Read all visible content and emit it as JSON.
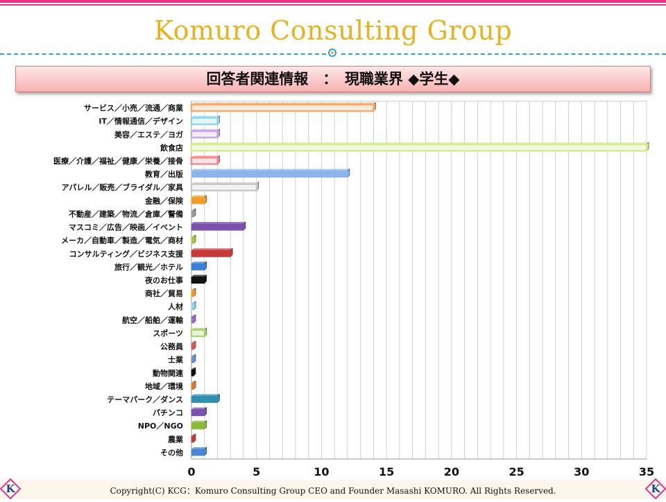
{
  "header": {
    "title": "Komuro Consulting Group"
  },
  "banner": {
    "text": "回答者関連情報　：　現職業界 ◆学生◆"
  },
  "footer": {
    "copyright": "Copyright(C)  KCG：Komuro Consulting Group   CEO and Founder  Masashi KOMURO. All Rights Reserved.",
    "logo_letter": "K"
  },
  "colors": {
    "accent_pink": "#e8318a",
    "title_gold": "#e7b21c",
    "dash_blue": "#2aa3d8"
  },
  "chart_data": {
    "type": "bar",
    "orientation": "horizontal",
    "title": "回答者関連情報　：　現職業界 ◆学生◆",
    "xlim": [
      0,
      35
    ],
    "xticks": [
      0,
      5,
      10,
      15,
      20,
      25,
      30,
      35
    ],
    "grid": true,
    "categories": [
      "サービス／小売／流通／商業",
      "IT／情報通信／デザイン",
      "美容／エステ／ヨガ",
      "飲食店",
      "医療／介護／福祉／健康／栄養／接骨",
      "教育／出版",
      "アパレル／販売／ブライダル／家具",
      "金融／保険",
      "不動産／建築／物流／倉庫／警備",
      "マスコミ／広告／映画／イベント",
      "メーカ／自動車／製造／電気／商材",
      "コンサルティング／ビジネス支援",
      "旅行／観光／ホテル",
      "夜のお仕事",
      "商社／貿易",
      "人材",
      "航空／船舶／運輸",
      "スポーツ",
      "公務員",
      "士業",
      "動物関連",
      "地域／環境",
      "テーマパーク／ダンス",
      "パチンコ",
      "NPO／NGO",
      "農業",
      "その他"
    ],
    "values": [
      14,
      2,
      2,
      35,
      2,
      12,
      5,
      1,
      0,
      4,
      0,
      3,
      1,
      1,
      0,
      0,
      0,
      1,
      0,
      0,
      0,
      0,
      2,
      1,
      1,
      0,
      1
    ],
    "bar_colors": [
      "#f5a86a",
      "#8fd6ec",
      "#c5a6e0",
      "#d4ec8a",
      "#f4888a",
      "#8ab4ea",
      "#c8c8c8",
      "#f39c2e",
      "#9a9a9a",
      "#7a52ad",
      "#a8c842",
      "#c83a3a",
      "#3d7fd6",
      "#111111",
      "#f39c2e",
      "#8fd6ec",
      "#9d6bc4",
      "#a8d46a",
      "#d85a5a",
      "#6a8fd6",
      "#111111",
      "#e07a2a",
      "#2e8fae",
      "#7a52ad",
      "#8aba3a",
      "#c83a3a",
      "#4a86d6"
    ],
    "bar_fill_light": [
      true,
      true,
      true,
      true,
      true,
      false,
      true,
      false,
      false,
      false,
      false,
      false,
      false,
      false,
      false,
      false,
      false,
      true,
      false,
      false,
      false,
      false,
      false,
      false,
      false,
      false,
      false
    ]
  }
}
